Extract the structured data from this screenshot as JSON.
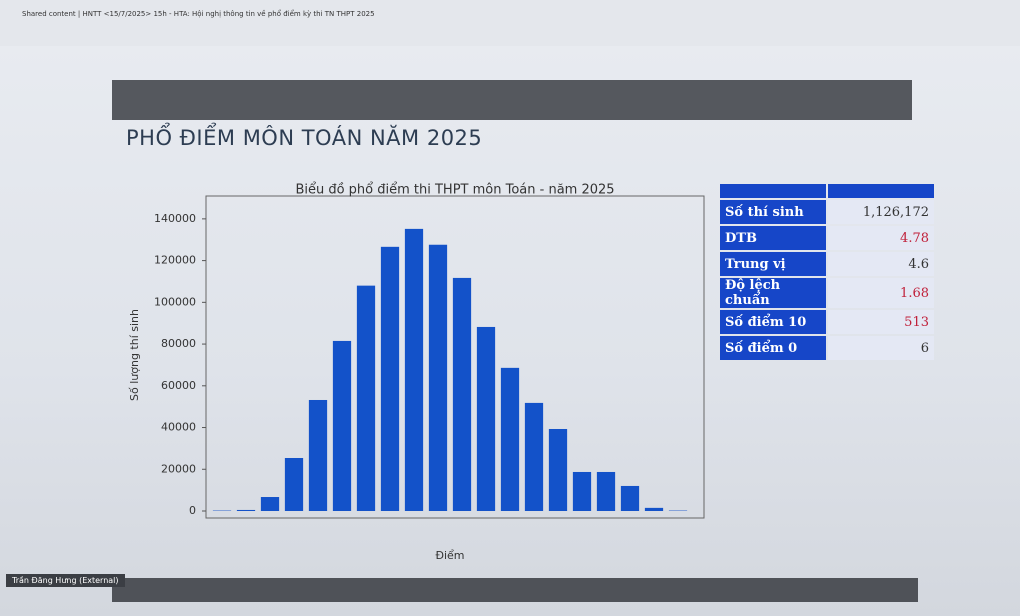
{
  "window": {
    "title": "Shared content | HNTT <15/7/2025> 15h - HTA: Hội nghị thông tin về phổ điểm kỳ thi TN THPT 2025"
  },
  "slide": {
    "title": "PHỔ ĐIỂM MÔN TOÁN NĂM 2025"
  },
  "chart_data": {
    "type": "bar",
    "title": "Biểu đồ phổ điểm thi THPT môn Toán - năm 2025",
    "x_label": "Điểm",
    "y_label": "Số lượng thí sinh",
    "categories": [
      null,
      null,
      null,
      null,
      null,
      null,
      null,
      null,
      null,
      null,
      null,
      null,
      null,
      null,
      null,
      null,
      null,
      null,
      null,
      null
    ],
    "values": [
      200,
      500,
      6700,
      25400,
      53200,
      81500,
      108000,
      126600,
      135200,
      127600,
      111700,
      88200,
      68600,
      51800,
      39300,
      18700,
      18700,
      12000,
      1500,
      200
    ],
    "color": "#1352c9",
    "ylim": [
      0,
      150000
    ],
    "yticks": [
      0,
      20000,
      40000,
      60000,
      80000,
      100000,
      120000,
      140000
    ],
    "grid": false
  },
  "stats": {
    "rows": [
      {
        "label": "Số thí sinh",
        "value": "1,126,172",
        "highlight": false
      },
      {
        "label": "DTB",
        "value": "4.78",
        "highlight": true
      },
      {
        "label": "Trung vị",
        "value": "4.6",
        "highlight": false
      },
      {
        "label": "Độ lệch chuẩn",
        "value": "1.68",
        "highlight": true
      },
      {
        "label": "Số điểm 10",
        "value": "513",
        "highlight": true
      },
      {
        "label": "Số điểm 0",
        "value": "6",
        "highlight": false
      }
    ]
  },
  "footer": {
    "presenter": "Trần Đăng Hưng (External)"
  }
}
